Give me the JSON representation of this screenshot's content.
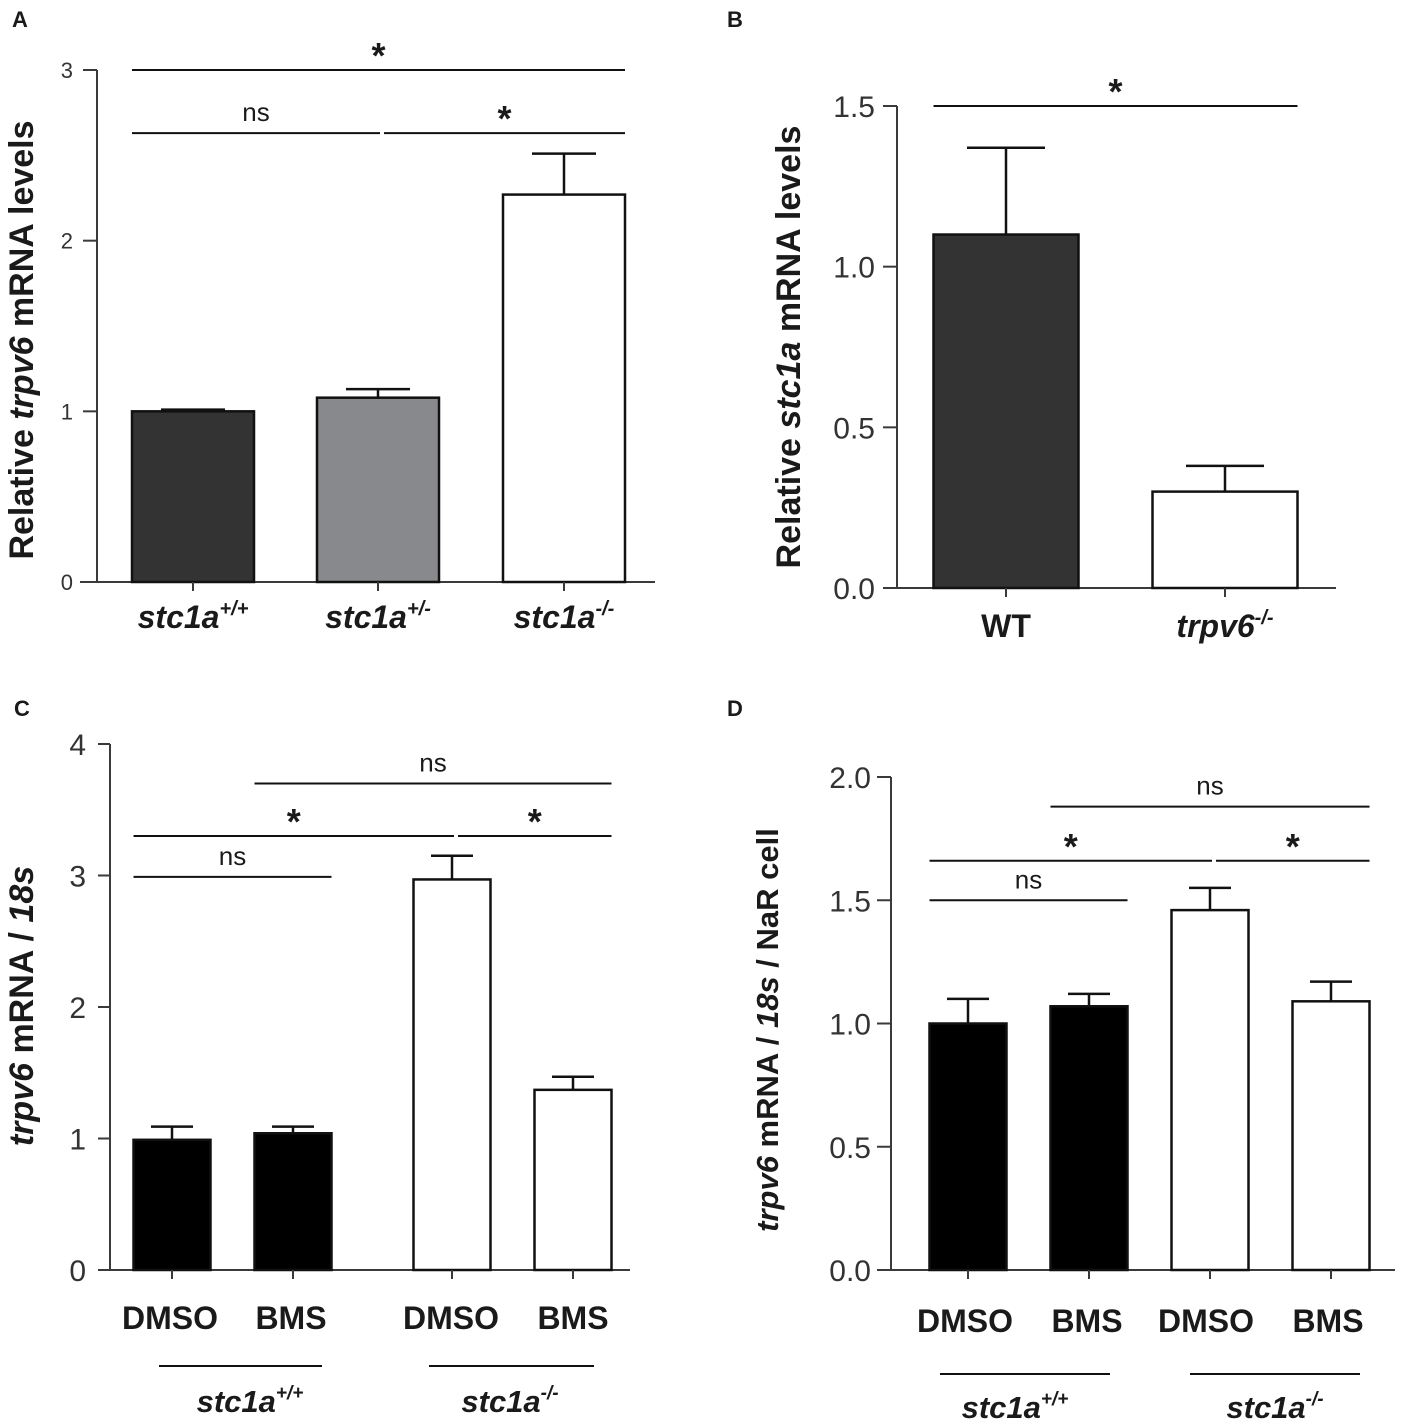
{
  "chart_data": [
    {
      "panel": "A",
      "type": "bar",
      "ylabel_parts": [
        "Relative ",
        "trpv6",
        " mRNA levels"
      ],
      "ylim": [
        0,
        3
      ],
      "yticks": [
        "0",
        "1",
        "2",
        "3"
      ],
      "categories": [
        {
          "base": "stc1a",
          "sup": "+/+"
        },
        {
          "base": "stc1a",
          "sup": "+/-"
        },
        {
          "base": "stc1a",
          "sup": "-/-"
        }
      ],
      "values": [
        1.0,
        1.08,
        2.27
      ],
      "errors": [
        0.01,
        0.05,
        0.24
      ],
      "colors": [
        "#333333",
        "#88898c",
        "#ffffff"
      ],
      "significance": [
        {
          "from": 0,
          "to": 2,
          "label": "*",
          "level": 3.0
        },
        {
          "from": 0,
          "to": 1,
          "label": "ns",
          "level": 2.63
        },
        {
          "from": 1,
          "to": 2,
          "label": "*",
          "level": 2.63
        }
      ]
    },
    {
      "panel": "B",
      "type": "bar",
      "ylabel_parts": [
        "Relative ",
        "stc1a",
        " mRNA levels"
      ],
      "ylim": [
        0,
        1.5
      ],
      "yticks": [
        "0.0",
        "0.5",
        "1.0",
        "1.5"
      ],
      "categories": [
        {
          "base": "WT",
          "sup": ""
        },
        {
          "base": "trpv6",
          "sup": "-/-"
        }
      ],
      "values": [
        1.1,
        0.3
      ],
      "errors": [
        0.27,
        0.08
      ],
      "colors": [
        "#333333",
        "#ffffff"
      ],
      "significance": [
        {
          "from": 0,
          "to": 1,
          "label": "*",
          "level": 1.5
        }
      ]
    },
    {
      "panel": "C",
      "type": "bar",
      "ylabel_parts": [
        "trpv6",
        " mRNA / ",
        "18s"
      ],
      "ylim": [
        0,
        4
      ],
      "yticks": [
        "0",
        "1",
        "2",
        "3",
        "4"
      ],
      "categories": [
        "DMSO",
        "BMS",
        "DMSO",
        "BMS"
      ],
      "groups": [
        {
          "base": "stc1a",
          "sup": "+/+"
        },
        {
          "base": "stc1a",
          "sup": "-/-"
        }
      ],
      "values": [
        0.99,
        1.04,
        2.97,
        1.37
      ],
      "errors": [
        0.1,
        0.05,
        0.18,
        0.1
      ],
      "colors": [
        "#000000",
        "#000000",
        "#ffffff",
        "#ffffff"
      ],
      "significance": [
        {
          "from": 1,
          "to": 3,
          "label": "ns",
          "level": 3.7
        },
        {
          "from": 0,
          "to": 2,
          "label": "*",
          "level": 3.3
        },
        {
          "from": 2,
          "to": 3,
          "label": "*",
          "level": 3.3
        },
        {
          "from": 0,
          "to": 1,
          "label": "ns",
          "level": 2.99
        }
      ]
    },
    {
      "panel": "D",
      "type": "bar",
      "ylabel_parts": [
        "trpv6",
        " mRNA / ",
        "18s",
        "  / NaR cell"
      ],
      "ylim": [
        0,
        2.0
      ],
      "yticks": [
        "0.0",
        "0.5",
        "1.0",
        "1.5",
        "2.0"
      ],
      "categories": [
        "DMSO",
        "BMS",
        "DMSO",
        "BMS"
      ],
      "groups": [
        {
          "base": "stc1a",
          "sup": "+/+"
        },
        {
          "base": "stc1a",
          "sup": "-/-"
        }
      ],
      "values": [
        1.0,
        1.07,
        1.46,
        1.09
      ],
      "errors": [
        0.1,
        0.05,
        0.09,
        0.08
      ],
      "colors": [
        "#000000",
        "#000000",
        "#ffffff",
        "#ffffff"
      ],
      "significance": [
        {
          "from": 1,
          "to": 3,
          "label": "ns",
          "level": 1.88
        },
        {
          "from": 0,
          "to": 2,
          "label": "*",
          "level": 1.66
        },
        {
          "from": 2,
          "to": 3,
          "label": "*",
          "level": 1.66
        },
        {
          "from": 0,
          "to": 1,
          "label": "ns",
          "level": 1.5
        }
      ]
    }
  ]
}
